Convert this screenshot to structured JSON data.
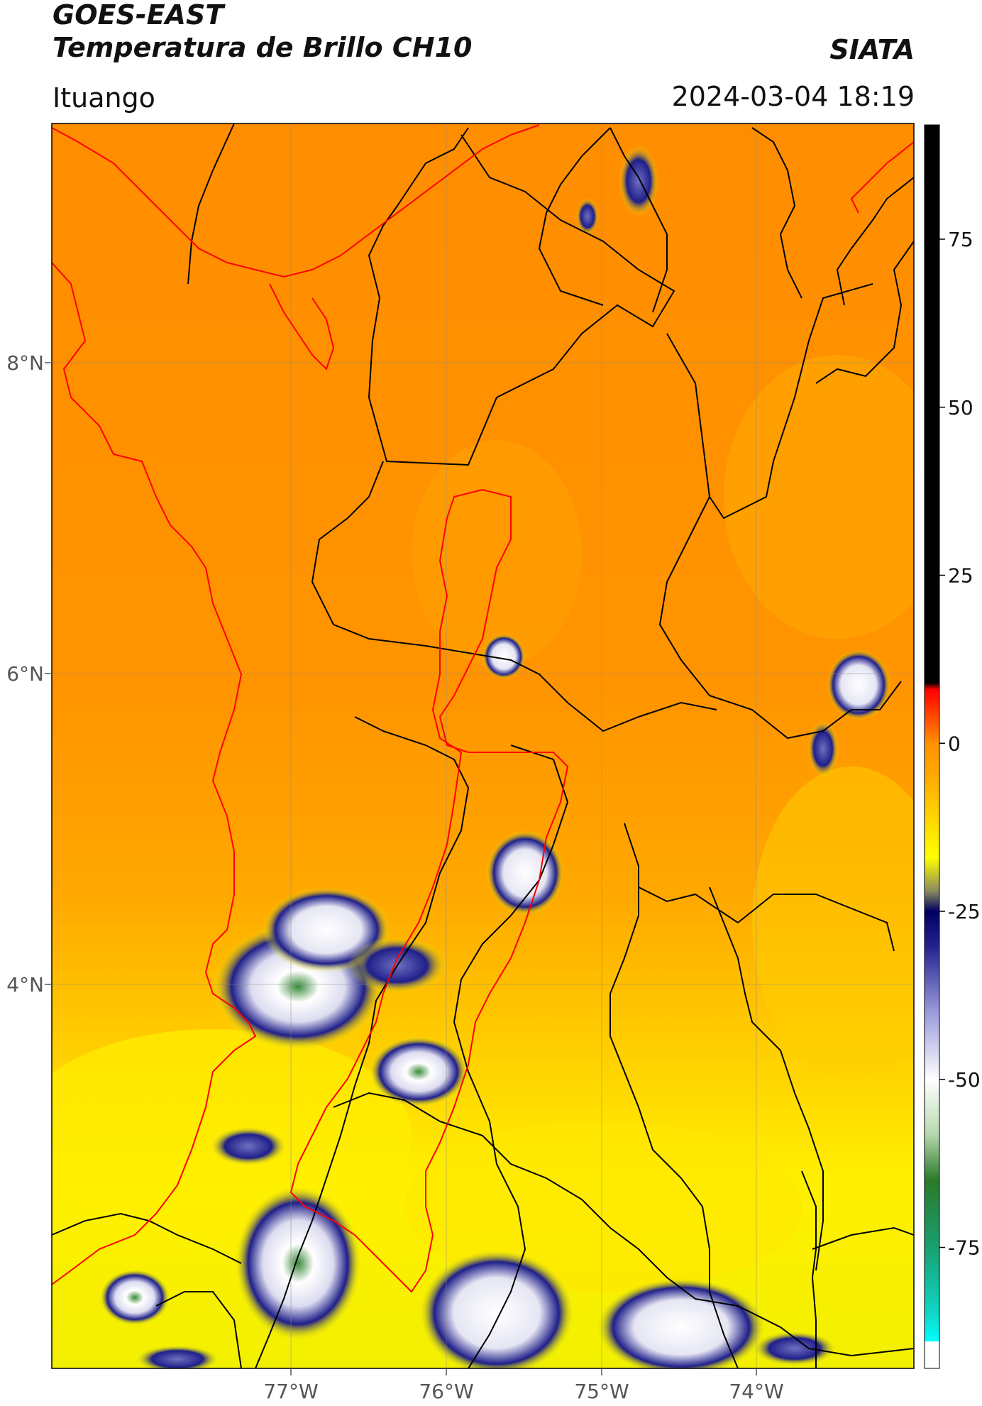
{
  "header": {
    "title_line1": "GOES-EAST",
    "title_line2": "Temperatura de Brillo CH10",
    "organization": "SIATA",
    "location": "Ituango",
    "timestamp": "2024-03-04 18:19"
  },
  "map": {
    "lon_labels": [
      "77°W",
      "76°W",
      "75°W",
      "74°W"
    ],
    "lat_labels": [
      "8°N",
      "6°N",
      "4°N"
    ]
  },
  "colorbar": {
    "ticks": [
      "75",
      "50",
      "25",
      "0",
      "-25",
      "-50",
      "-75"
    ],
    "tick_values": [
      75,
      50,
      25,
      0,
      -25,
      -50,
      -75
    ],
    "range": [
      -93,
      92
    ],
    "stops": [
      {
        "value": -93,
        "color": "#ffffff"
      },
      {
        "value": -89,
        "color": "#ffffff"
      },
      {
        "value": -89,
        "color": "#00ffff"
      },
      {
        "value": -85,
        "color": "#10d8c8"
      },
      {
        "value": -75,
        "color": "#18a070"
      },
      {
        "value": -65,
        "color": "#2a7a2a"
      },
      {
        "value": -58,
        "color": "#b9d9b0"
      },
      {
        "value": -50,
        "color": "#ffffff"
      },
      {
        "value": -40,
        "color": "#9a9adc"
      },
      {
        "value": -30,
        "color": "#202090"
      },
      {
        "value": -25,
        "color": "#000060"
      },
      {
        "value": -22,
        "color": "#8a8a60"
      },
      {
        "value": -17,
        "color": "#ffff00"
      },
      {
        "value": -5,
        "color": "#ffaa00"
      },
      {
        "value": 0,
        "color": "#ff9000"
      },
      {
        "value": 8,
        "color": "#ff0000"
      },
      {
        "value": 9,
        "color": "#000000"
      },
      {
        "value": 92,
        "color": "#000000"
      }
    ]
  },
  "colors": {
    "background_warm": "#ff8f00",
    "background_mid": "#ffb000",
    "background_cool": "#fff000",
    "cloud_blue": "#1f1f8a",
    "cloud_white": "#ffffff",
    "cloud_green": "#3a8a3a",
    "boundary_black": "#000000",
    "boundary_red": "#ff0000"
  }
}
